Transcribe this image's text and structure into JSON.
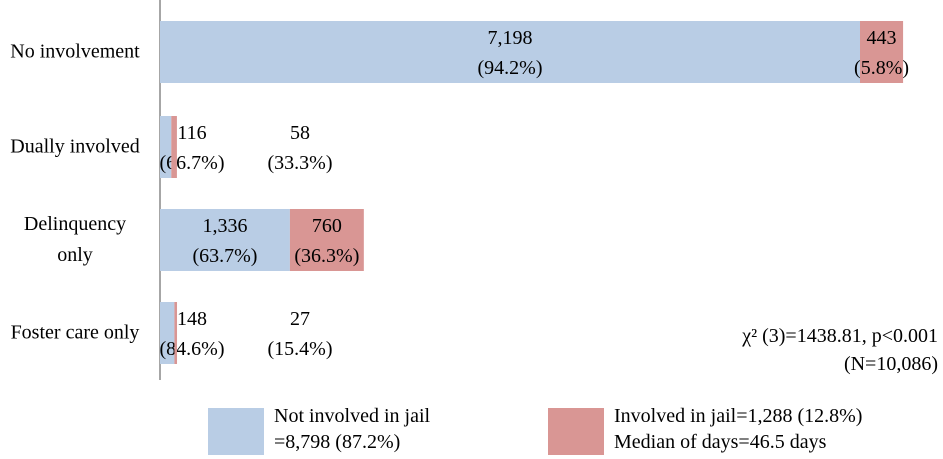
{
  "chart_data": {
    "type": "stacked-barh",
    "categories": [
      "No involvement",
      "Dually involved",
      "Delinquency only",
      "Foster care only"
    ],
    "series": [
      {
        "name": "Not involved in jail",
        "legend_note": "=8,798 (87.2%)",
        "color": "#b9cde5",
        "values": [
          7198,
          116,
          1336,
          148
        ],
        "value_labels": [
          "7,198",
          "116",
          "1,336",
          "148"
        ],
        "shares": [
          94.2,
          66.7,
          63.7,
          84.6
        ],
        "share_labels": [
          "(94.2%)",
          "(66.7%)",
          "(63.7%)",
          "(84.6%)"
        ]
      },
      {
        "name": "Involved in jail=1,288 (12.8%)",
        "legend_note": "Median of days=46.5 days",
        "color": "#d99694",
        "values": [
          443,
          58,
          760,
          27
        ],
        "value_labels": [
          "443",
          "58",
          "760",
          "27"
        ],
        "shares": [
          5.8,
          33.3,
          36.3,
          15.4
        ],
        "share_labels": [
          "(5.8%)",
          "(33.3%)",
          "(36.3%)",
          "(15.4%)"
        ]
      }
    ],
    "xlim": [
      0,
      8000
    ],
    "annotation": "χ² (3)=1438.81, p<0.001",
    "n_label": "(N=10,086)"
  }
}
